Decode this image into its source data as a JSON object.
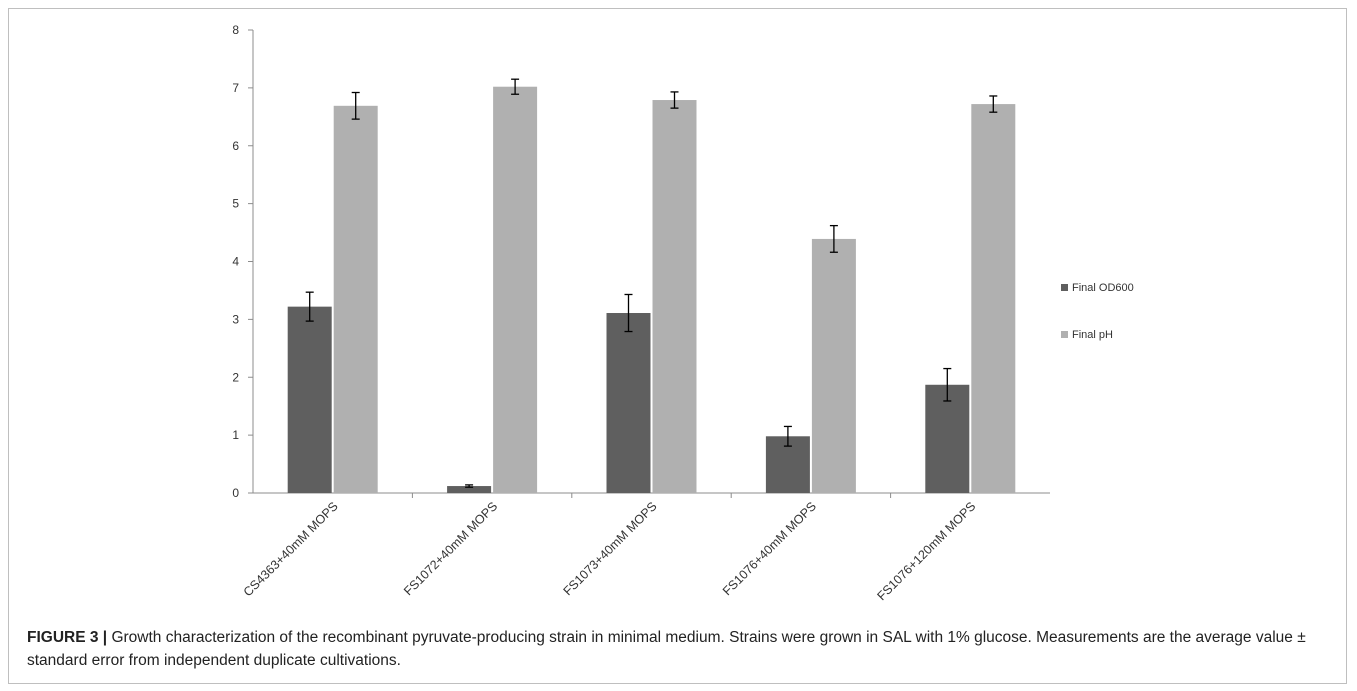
{
  "figure_label": "FIGURE 3 |",
  "figure_caption": " Growth characterization of the recombinant pyruvate-producing strain in minimal medium. Strains were grown in SAL with 1% glucose. Measurements are the average value ± standard error from independent duplicate cultivations.",
  "chart_data": {
    "type": "bar",
    "title": "",
    "xlabel": "",
    "ylabel": "",
    "ylim": [
      0,
      8
    ],
    "yticks": [
      0,
      1,
      2,
      3,
      4,
      5,
      6,
      7,
      8
    ],
    "grid": false,
    "legend_position": "right",
    "categories": [
      "CS4363+40mM MOPS",
      "FS1072+40mM MOPS",
      "FS1073+40mM MOPS",
      "FS1076+40mM MOPS",
      "FS1076+120mM MOPS"
    ],
    "series": [
      {
        "name": "Final OD600",
        "color": "#5f5f5f",
        "values": [
          3.22,
          0.12,
          3.11,
          0.98,
          1.87
        ],
        "errors": [
          0.25,
          0.02,
          0.32,
          0.17,
          0.28
        ]
      },
      {
        "name": "Final pH",
        "color": "#b0b0b0",
        "values": [
          6.69,
          7.02,
          6.79,
          4.39,
          6.72
        ],
        "errors": [
          0.23,
          0.13,
          0.14,
          0.23,
          0.14
        ]
      }
    ]
  }
}
